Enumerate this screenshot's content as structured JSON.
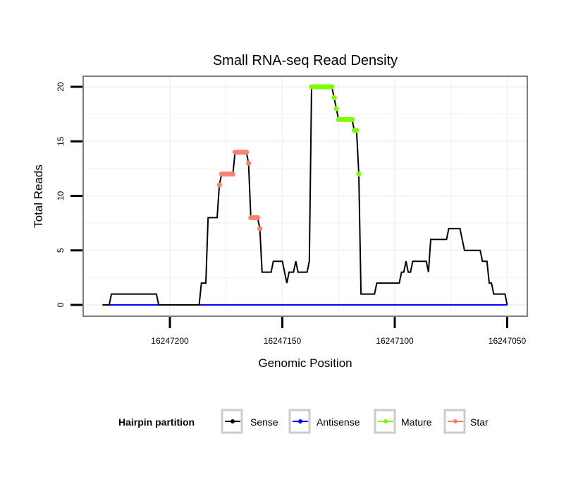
{
  "chart_data": {
    "type": "line",
    "title": "Small RNA-seq Read Density",
    "xlabel": "Genomic Position",
    "ylabel": "Total Reads",
    "x_reversed": true,
    "xlim": [
      16247230,
      16247050
    ],
    "ylim": [
      0,
      20
    ],
    "x_ticks": [
      16247200,
      16247150,
      16247100,
      16247050
    ],
    "x_tick_labels": [
      "16247200",
      "16247150",
      "16247100",
      "16247050"
    ],
    "y_ticks": [
      0,
      5,
      10,
      15,
      20
    ],
    "y_tick_labels": [
      "0",
      "5",
      "10",
      "15",
      "20"
    ],
    "grid": true,
    "legend": {
      "title": "Hairpin partition",
      "placement": "bottom",
      "entries": [
        {
          "name": "Sense",
          "color": "#000000"
        },
        {
          "name": "Antisense",
          "color": "#0000ff"
        },
        {
          "name": "Mature",
          "color": "#7cfc00"
        },
        {
          "name": "Star",
          "color": "#fa8072"
        }
      ]
    },
    "start_position": 16247230,
    "step": -1,
    "sense_values": [
      0,
      0,
      0,
      0,
      1,
      1,
      1,
      1,
      1,
      1,
      1,
      1,
      1,
      1,
      1,
      1,
      1,
      1,
      1,
      1,
      1,
      1,
      1,
      1,
      1,
      0,
      0,
      0,
      0,
      0,
      0,
      0,
      0,
      0,
      0,
      0,
      0,
      0,
      0,
      0,
      0,
      0,
      0,
      0,
      2,
      2,
      2,
      8,
      8,
      8,
      8,
      8,
      11,
      12,
      12,
      12,
      12,
      12,
      12,
      14,
      14,
      14,
      14,
      14,
      14,
      13,
      8,
      8,
      8,
      8,
      7,
      3,
      3,
      3,
      3,
      3,
      4,
      4,
      4,
      4,
      4,
      3,
      2,
      3,
      3,
      3,
      4,
      3,
      3,
      3,
      3,
      3,
      4,
      20,
      20,
      20,
      20,
      20,
      20,
      20,
      20,
      20,
      20,
      19,
      18,
      17,
      17,
      17,
      17,
      17,
      17,
      17,
      16,
      16,
      12,
      1,
      1,
      1,
      1,
      1,
      1,
      1,
      2,
      2,
      2,
      2,
      2,
      2,
      2,
      2,
      2,
      2,
      2,
      3,
      3,
      4,
      3,
      3,
      4,
      4,
      4,
      4,
      4,
      4,
      4,
      3,
      6,
      6,
      6,
      6,
      6,
      6,
      6,
      6,
      7,
      7,
      7,
      7,
      7,
      7,
      6,
      5,
      5,
      5,
      5,
      5,
      5,
      5,
      5,
      4,
      4,
      4,
      2,
      2,
      1,
      1,
      1,
      1,
      1,
      1,
      0
    ],
    "antisense_values_constant": 0,
    "star_index_range": [
      52,
      70
    ],
    "mature_index_range": [
      93,
      114
    ]
  }
}
